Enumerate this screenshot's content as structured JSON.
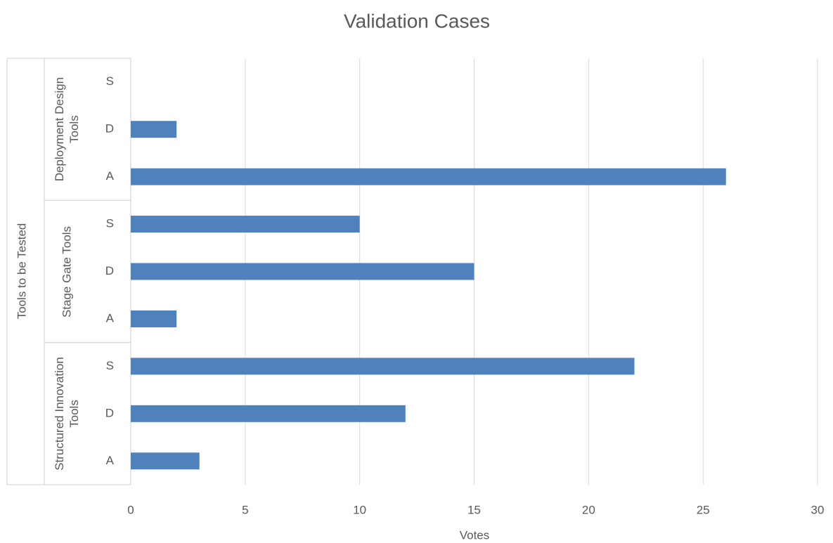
{
  "chart_data": {
    "type": "bar",
    "orientation": "horizontal",
    "title": "Validation Cases",
    "x_label": "Votes",
    "y_label": "Tools to be Tested",
    "color": "#4f81bd",
    "groups": [
      {
        "name": "Structured Innovation Tools",
        "categories": [
          "A",
          "D",
          "S"
        ],
        "values": [
          3,
          12,
          22
        ]
      },
      {
        "name": "Stage Gate Tools",
        "categories": [
          "A",
          "D",
          "S"
        ],
        "values": [
          2,
          15,
          10
        ]
      },
      {
        "name": "Deployment Design Tools",
        "categories": [
          "A",
          "D",
          "S"
        ],
        "values": [
          26,
          2,
          null
        ]
      }
    ],
    "xlim": [
      0,
      30
    ],
    "xticks": [
      0,
      5,
      10,
      15,
      20,
      25,
      30
    ],
    "grid": true
  }
}
